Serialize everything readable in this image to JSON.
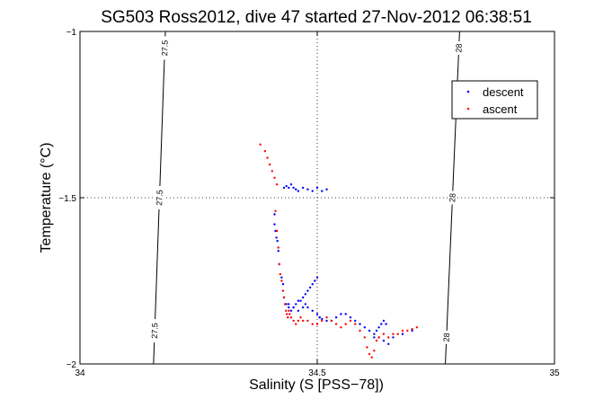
{
  "chart_data": {
    "type": "scatter",
    "title": "SG503 Ross2012, dive 47 started 27-Nov-2012 06:38:51",
    "xlabel": "Salinity (S [PSS−78])",
    "ylabel": "Temperature (°C)",
    "xlim": [
      34,
      35
    ],
    "ylim": [
      -2,
      -1
    ],
    "xticks": [
      34,
      34.5,
      35
    ],
    "xtick_labels": [
      "34",
      "34.5",
      "35"
    ],
    "yticks": [
      -2,
      -1.5,
      -1
    ],
    "ytick_labels": [
      "−2",
      "−1.5",
      "−1"
    ],
    "grid": true,
    "legend": "top-right",
    "series": [
      {
        "name": "descent",
        "color": "#0000ff",
        "marker": "dot",
        "x": [
          34.43,
          34.435,
          34.44,
          34.445,
          34.45,
          34.455,
          34.46,
          34.47,
          34.48,
          34.49,
          34.5,
          34.51,
          34.52,
          34.41,
          34.41,
          34.412,
          34.414,
          34.416,
          34.418,
          34.42,
          34.425,
          34.428,
          34.43,
          34.435,
          34.44,
          34.445,
          34.45,
          34.455,
          34.46,
          34.465,
          34.47,
          34.475,
          34.48,
          34.485,
          34.49,
          34.495,
          34.5,
          34.44,
          34.45,
          34.46,
          34.47,
          34.475,
          34.48,
          34.49,
          34.5,
          34.505,
          34.505,
          34.51,
          34.52,
          34.53,
          34.54,
          34.55,
          34.56,
          34.57,
          34.58,
          34.59,
          34.6,
          34.61,
          34.62,
          34.63,
          34.64,
          34.65,
          34.66,
          34.68,
          34.7,
          34.62,
          34.625,
          34.63,
          34.635,
          34.64,
          34.645
        ],
        "y": [
          -1.47,
          -1.465,
          -1.47,
          -1.46,
          -1.47,
          -1.475,
          -1.48,
          -1.47,
          -1.475,
          -1.48,
          -1.47,
          -1.48,
          -1.475,
          -1.55,
          -1.58,
          -1.6,
          -1.62,
          -1.63,
          -1.66,
          -1.7,
          -1.74,
          -1.76,
          -1.8,
          -1.82,
          -1.83,
          -1.84,
          -1.83,
          -1.82,
          -1.81,
          -1.81,
          -1.8,
          -1.79,
          -1.78,
          -1.77,
          -1.76,
          -1.75,
          -1.74,
          -1.82,
          -1.83,
          -1.84,
          -1.83,
          -1.82,
          -1.83,
          -1.84,
          -1.85,
          -1.86,
          -1.86,
          -1.865,
          -1.87,
          -1.87,
          -1.86,
          -1.85,
          -1.85,
          -1.86,
          -1.87,
          -1.88,
          -1.89,
          -1.9,
          -1.91,
          -1.92,
          -1.93,
          -1.94,
          -1.92,
          -1.91,
          -1.9,
          -1.92,
          -1.9,
          -1.89,
          -1.88,
          -1.87,
          -1.88
        ]
      },
      {
        "name": "ascent",
        "color": "#ff0000",
        "marker": "dot",
        "x": [
          34.38,
          34.39,
          34.395,
          34.4,
          34.405,
          34.41,
          34.415,
          34.412,
          34.415,
          34.418,
          34.42,
          34.422,
          34.425,
          34.428,
          34.43,
          34.432,
          34.434,
          34.436,
          34.438,
          34.44,
          34.442,
          34.445,
          34.45,
          34.455,
          34.46,
          34.465,
          34.47,
          34.48,
          34.49,
          34.5,
          34.51,
          34.52,
          34.53,
          34.54,
          34.55,
          34.56,
          34.57,
          34.58,
          34.59,
          34.6,
          34.605,
          34.61,
          34.615,
          34.62,
          34.625,
          34.63,
          34.64,
          34.65,
          34.66,
          34.67,
          34.68,
          34.69,
          34.7,
          34.71
        ],
        "y": [
          -1.34,
          -1.36,
          -1.38,
          -1.4,
          -1.42,
          -1.44,
          -1.46,
          -1.54,
          -1.6,
          -1.65,
          -1.7,
          -1.73,
          -1.75,
          -1.78,
          -1.8,
          -1.82,
          -1.84,
          -1.85,
          -1.86,
          -1.84,
          -1.85,
          -1.86,
          -1.87,
          -1.88,
          -1.87,
          -1.86,
          -1.87,
          -1.87,
          -1.88,
          -1.88,
          -1.87,
          -1.86,
          -1.87,
          -1.88,
          -1.89,
          -1.88,
          -1.87,
          -1.88,
          -1.9,
          -1.92,
          -1.95,
          -1.97,
          -1.98,
          -1.96,
          -1.93,
          -1.92,
          -1.91,
          -1.92,
          -1.91,
          -1.91,
          -1.9,
          -1.9,
          -1.895,
          -1.89
        ]
      }
    ],
    "contours": [
      {
        "label": "27.5",
        "x_at_top": 34.18,
        "x_at_bottom": 34.155,
        "label_y": [
          -1.05,
          -1.5,
          -1.9
        ]
      },
      {
        "label": "28",
        "x_at_top": 34.8,
        "x_at_bottom": 34.77,
        "label_y": [
          -1.05,
          -1.5,
          -1.92
        ]
      }
    ]
  }
}
